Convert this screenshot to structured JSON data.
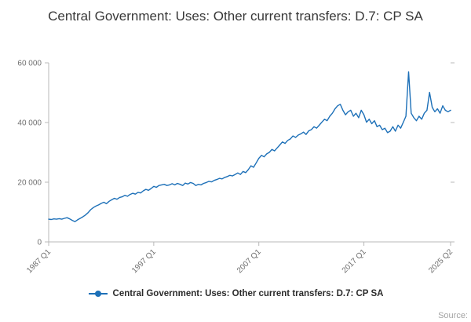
{
  "page": {
    "source_label": "Source:"
  },
  "legend": {
    "label": "Central Government: Uses: Other current transfers: D.7: CP SA"
  },
  "chart_data": {
    "type": "line",
    "title": "Central Government: Uses: Other current transfers: D.7: CP SA",
    "series_name": "Central Government: Uses: Other current transfers: D.7: CP SA",
    "x_range": {
      "start": "1987 Q1",
      "end": "2025 Q2",
      "frequency": "quarterly"
    },
    "x_ticks": [
      {
        "label": "1987 Q1",
        "index": 0
      },
      {
        "label": "1997 Q1",
        "index": 40
      },
      {
        "label": "2007 Q1",
        "index": 80
      },
      {
        "label": "2017 Q1",
        "index": 120
      },
      {
        "label": "2025 Q2",
        "index": 153
      }
    ],
    "y_ticks": [
      {
        "label": "0",
        "value": 0
      },
      {
        "label": "20 000",
        "value": 20000
      },
      {
        "label": "40 000",
        "value": 40000
      },
      {
        "label": "60 000",
        "value": 60000
      }
    ],
    "ylim": [
      0,
      60000
    ],
    "grid": false,
    "legend_position": "bottom",
    "line_color": "#1d70b8",
    "values": [
      7600,
      7500,
      7700,
      7600,
      7800,
      7600,
      7900,
      8100,
      7700,
      7200,
      6800,
      7400,
      7900,
      8400,
      9000,
      9800,
      10800,
      11500,
      12000,
      12400,
      12900,
      13300,
      12800,
      13600,
      14100,
      14600,
      14300,
      14900,
      15100,
      15600,
      15300,
      15900,
      16300,
      16000,
      16600,
      16400,
      17100,
      17600,
      17300,
      17900,
      18600,
      18300,
      18900,
      19100,
      19300,
      18900,
      19100,
      19500,
      19100,
      19600,
      19300,
      18900,
      19700,
      19400,
      19900,
      19600,
      18900,
      19300,
      19100,
      19600,
      19900,
      20300,
      20100,
      20600,
      20900,
      21300,
      21100,
      21600,
      21900,
      22300,
      22100,
      22600,
      23100,
      22600,
      23600,
      23200,
      24200,
      25500,
      25000,
      26500,
      28000,
      29000,
      28500,
      29500,
      30000,
      31000,
      30500,
      31500,
      32500,
      33500,
      33000,
      34000,
      34500,
      35500,
      35000,
      35800,
      36200,
      36800,
      36000,
      37200,
      37600,
      38600,
      38100,
      39100,
      40100,
      41100,
      40600,
      42100,
      43100,
      44600,
      45600,
      46100,
      44100,
      42600,
      43600,
      44100,
      42100,
      43100,
      41600,
      44100,
      42600,
      40100,
      41100,
      39600,
      40600,
      38600,
      39100,
      37600,
      38100,
      36600,
      37100,
      38600,
      37100,
      39100,
      38100,
      40100,
      42100,
      57000,
      43100,
      41600,
      40600,
      42100,
      41100,
      43100,
      44100,
      50100,
      45100,
      43600,
      44600,
      43100,
      45600,
      44100,
      43600,
      44100
    ]
  }
}
